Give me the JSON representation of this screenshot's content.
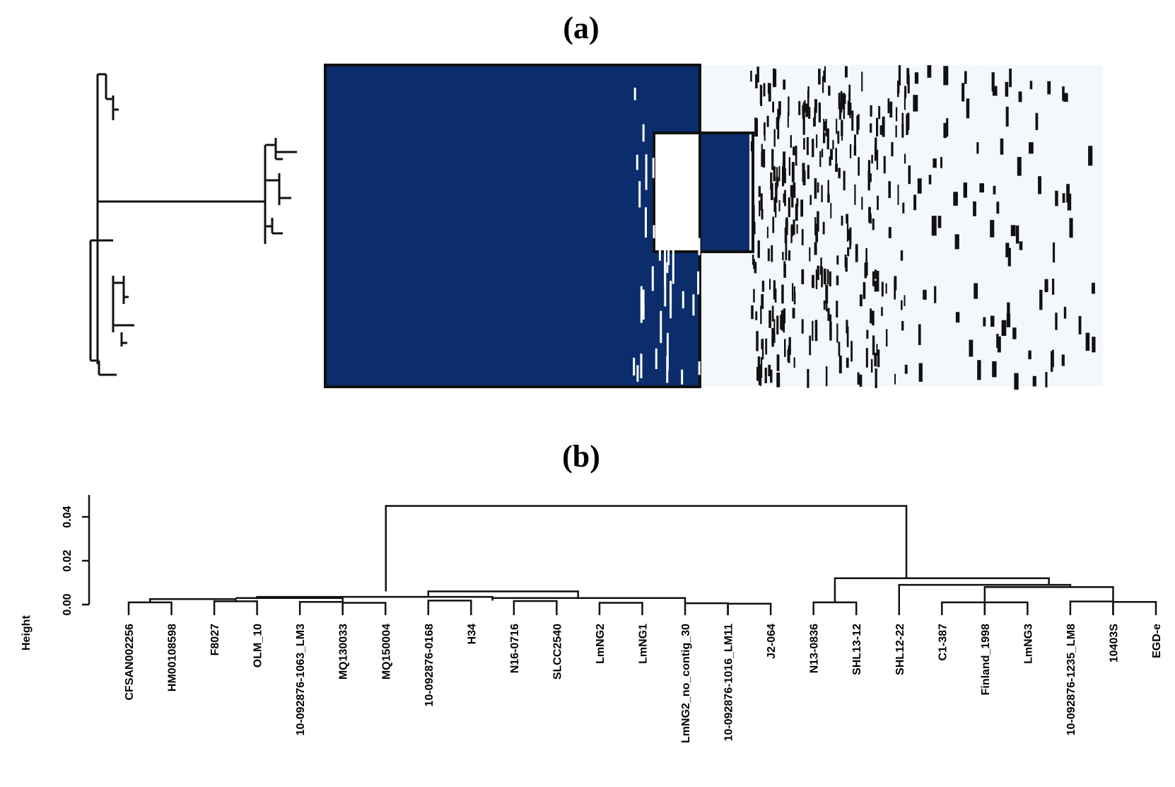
{
  "panel_a": {
    "label": "(a)",
    "heatmap": {
      "colors": {
        "present": "#0b2d6b",
        "absent": "#f4f7fc",
        "border": "#111111",
        "mark": "#111111"
      }
    }
  },
  "panel_b": {
    "label": "(b)"
  },
  "chart_data": {
    "type": "dendrogram",
    "ylabel": "Height",
    "yticks": [
      "0.00",
      "0.02",
      "0.04"
    ],
    "ylim": [
      0,
      0.05
    ],
    "leaves": [
      "CFSAN002256",
      "HM00108598",
      "F8027",
      "OLM_10",
      "10-092876-1063_LM3",
      "MQ130033",
      "MQ150004",
      "10-092876-0168",
      "H34",
      "N16-0716",
      "SLCC2540",
      "LmNG2",
      "LmNG1",
      "LmNG2_no_contig_30",
      "10-092876-1016_LM11",
      "J2-064",
      "N13-0836",
      "SHL13-12",
      "SHL12-22",
      "C1-387",
      "Finland_1998",
      "LmNG3",
      "10-092876-1235_LM8",
      "10403S",
      "EGD-e"
    ],
    "root_height": 0.045,
    "cluster_heights": {
      "left_cluster": 0.006,
      "right_cluster": 0.012
    }
  }
}
